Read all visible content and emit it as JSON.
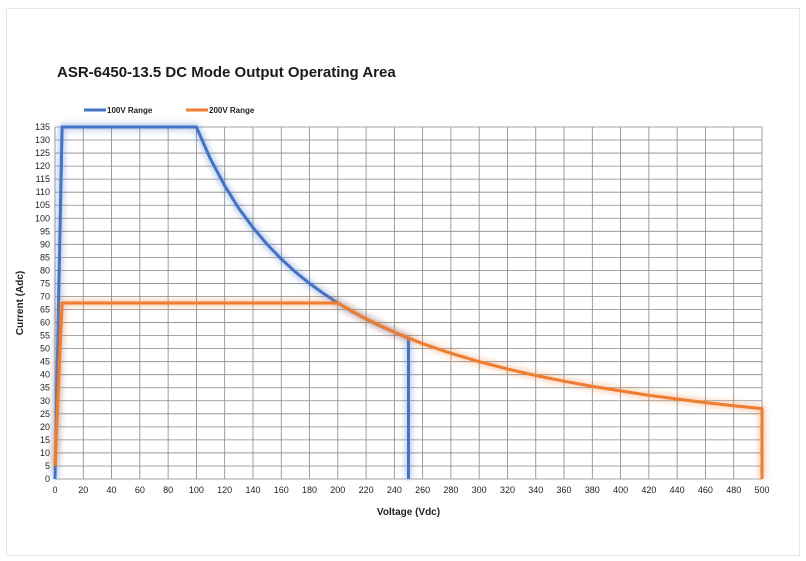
{
  "colors": {
    "series_100v": "#4472c4",
    "series_200v": "#ed7d31",
    "grid": "#888888"
  },
  "chart_data": {
    "type": "line",
    "title": "ASR-6450-13.5 DC Mode Output Operating Area",
    "xlabel": "Voltage (Vdc)",
    "ylabel": "Current (Adc)",
    "xlim": [
      0,
      500
    ],
    "ylim": [
      0,
      135
    ],
    "xticks": [
      0,
      20,
      40,
      60,
      80,
      100,
      120,
      140,
      160,
      180,
      200,
      220,
      240,
      260,
      280,
      300,
      320,
      340,
      360,
      380,
      400,
      420,
      440,
      460,
      480,
      500
    ],
    "yticks": [
      0,
      5,
      10,
      15,
      20,
      25,
      30,
      35,
      40,
      45,
      50,
      55,
      60,
      65,
      70,
      75,
      80,
      85,
      90,
      95,
      100,
      105,
      110,
      115,
      120,
      125,
      130,
      135
    ],
    "grid": true,
    "legend_position": "top-left",
    "series": [
      {
        "name": "100V Range",
        "color": "#4472c4",
        "points": [
          [
            0,
            0
          ],
          [
            5,
            135
          ],
          [
            100,
            135
          ],
          [
            110,
            122.7
          ],
          [
            120,
            112.5
          ],
          [
            130,
            103.8
          ],
          [
            140,
            96.4
          ],
          [
            150,
            90
          ],
          [
            160,
            84.4
          ],
          [
            170,
            79.4
          ],
          [
            180,
            75
          ],
          [
            190,
            71.1
          ],
          [
            200,
            67.5
          ],
          [
            210,
            64.3
          ],
          [
            220,
            61.4
          ],
          [
            230,
            58.7
          ],
          [
            240,
            56.3
          ],
          [
            250,
            54
          ],
          [
            250,
            0
          ]
        ]
      },
      {
        "name": "200V Range",
        "color": "#ed7d31",
        "points": [
          [
            0,
            5
          ],
          [
            5,
            67.5
          ],
          [
            200,
            67.5
          ],
          [
            220,
            61.4
          ],
          [
            240,
            56.3
          ],
          [
            260,
            51.9
          ],
          [
            280,
            48.2
          ],
          [
            300,
            45
          ],
          [
            320,
            42.2
          ],
          [
            340,
            39.7
          ],
          [
            360,
            37.5
          ],
          [
            380,
            35.5
          ],
          [
            400,
            33.8
          ],
          [
            420,
            32.1
          ],
          [
            440,
            30.7
          ],
          [
            460,
            29.3
          ],
          [
            480,
            28.1
          ],
          [
            500,
            27
          ],
          [
            500,
            0
          ]
        ]
      }
    ]
  }
}
